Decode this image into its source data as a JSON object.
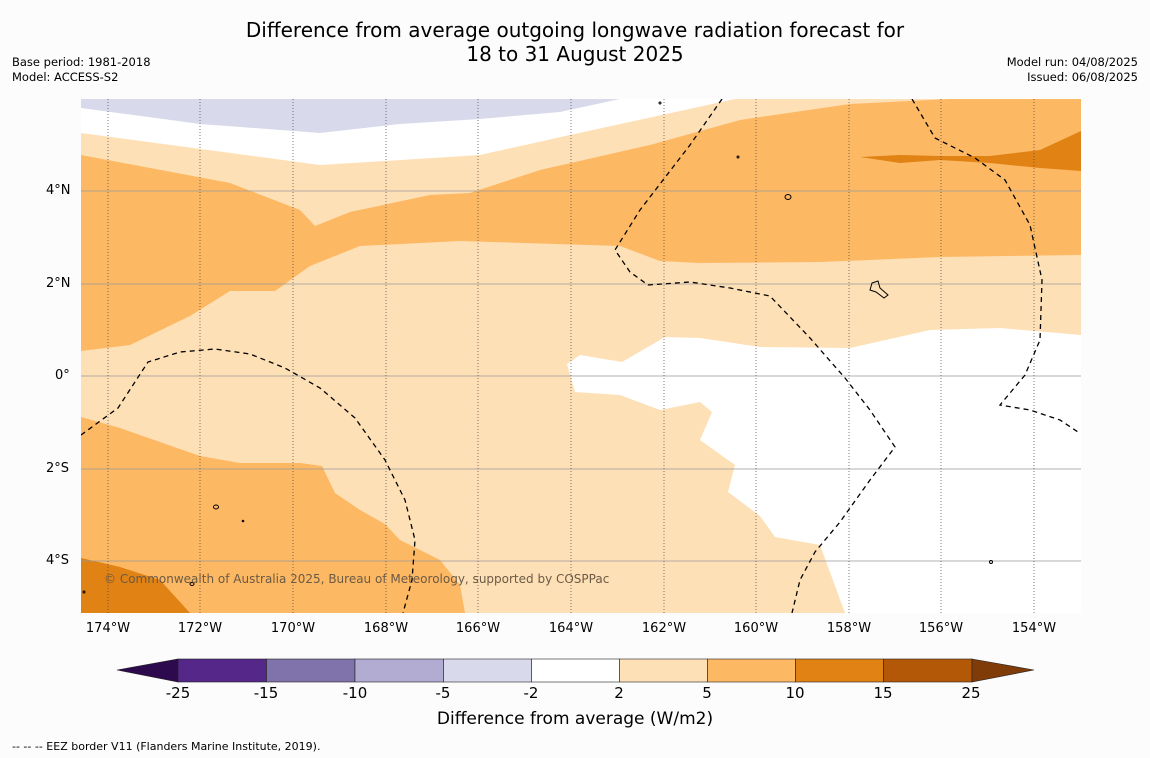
{
  "title_line1": "Difference from average outgoing longwave radiation forecast for",
  "title_line2": "18 to 31 August 2025",
  "base_period": "Base period: 1981-2018",
  "model": "Model: ACCESS-S2",
  "model_run": "Model run: 04/08/2025",
  "issued": "Issued: 06/08/2025",
  "copyright": "© Commonwealth of Australia 2025, Bureau of Meteorology, supported by COSPPac",
  "footer": "--  --  -- EEZ border V11 (Flanders Marine Institute, 2019).",
  "map": {
    "lat_labels": [
      "4°N",
      "2°N",
      "0°",
      "2°S",
      "4°S"
    ],
    "lon_labels": [
      "174°W",
      "172°W",
      "170°W",
      "168°W",
      "166°W",
      "164°W",
      "162°W",
      "160°W",
      "158°W",
      "156°W",
      "154°W"
    ]
  },
  "colorbar": {
    "title": "Difference from average (W/m2)",
    "labels": [
      "-25",
      "-15",
      "-10",
      "-5",
      "-2",
      "2",
      "5",
      "10",
      "15",
      "25"
    ],
    "colors": [
      "#2d0a4e",
      "#542788",
      "#8073ac",
      "#b2abd2",
      "#d8daeb",
      "#ffffff",
      "#fee0b6",
      "#fdb863",
      "#e08214",
      "#b35806",
      "#7f3b08"
    ]
  }
}
